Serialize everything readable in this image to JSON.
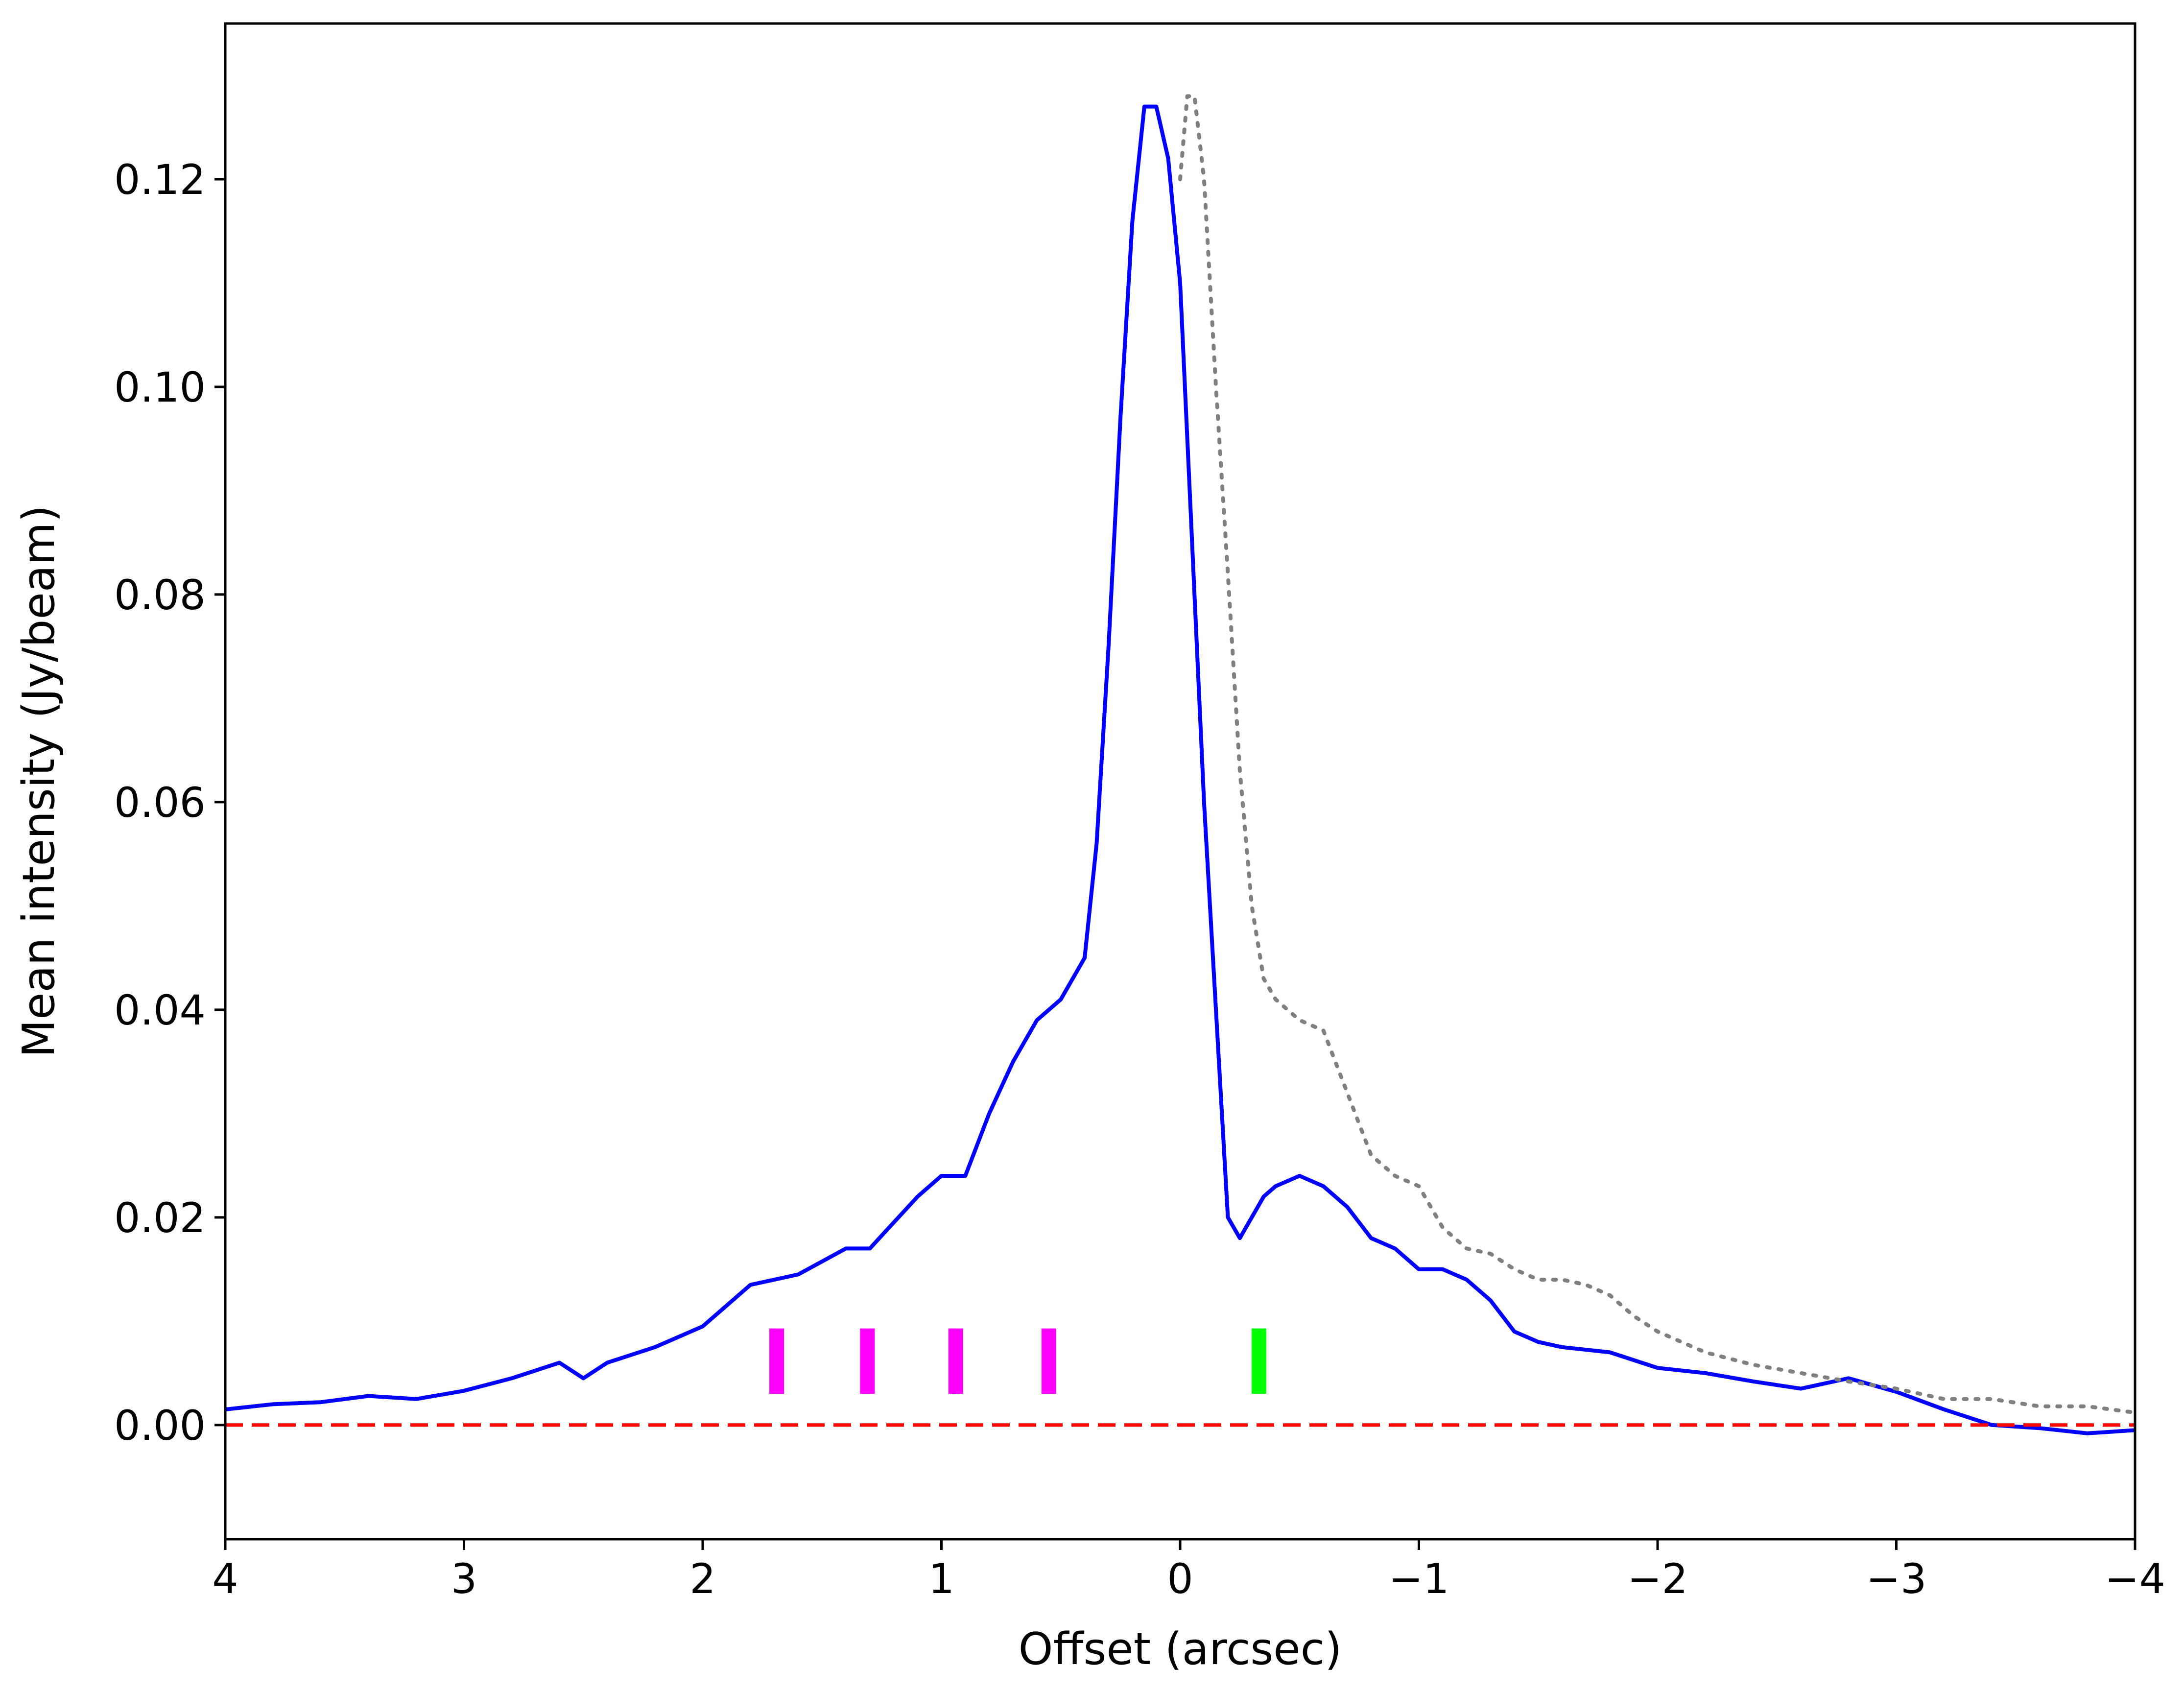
{
  "chart_data": {
    "type": "line",
    "title": "",
    "xlabel": "Offset (arcsec)",
    "ylabel": "Mean intensity (Jy/beam)",
    "xlim": [
      4,
      -4
    ],
    "ylim": [
      -0.011,
      0.135
    ],
    "x_ticks": [
      4,
      3,
      2,
      1,
      0,
      -1,
      -2,
      -3,
      -4
    ],
    "x_tick_labels": [
      "4",
      "3",
      "2",
      "1",
      "0",
      "−1",
      "−2",
      "−3",
      "−4"
    ],
    "y_ticks": [
      0.0,
      0.02,
      0.04,
      0.06,
      0.08,
      0.1,
      0.12
    ],
    "y_tick_labels": [
      "0.00",
      "0.02",
      "0.04",
      "0.06",
      "0.08",
      "0.10",
      "0.12"
    ],
    "grid": false,
    "legend": "none",
    "series": [
      {
        "style": "solid",
        "color": "#0000ff",
        "x": [
          4.0,
          3.8,
          3.6,
          3.4,
          3.2,
          3.0,
          2.8,
          2.6,
          2.5,
          2.4,
          2.2,
          2.0,
          1.8,
          1.7,
          1.6,
          1.4,
          1.3,
          1.2,
          1.1,
          1.0,
          0.9,
          0.8,
          0.7,
          0.6,
          0.5,
          0.4,
          0.35,
          0.3,
          0.25,
          0.2,
          0.15,
          0.1,
          0.05,
          0.0,
          -0.05,
          -0.1,
          -0.15,
          -0.2,
          -0.25,
          -0.3,
          -0.35,
          -0.4,
          -0.5,
          -0.6,
          -0.7,
          -0.8,
          -0.9,
          -1.0,
          -1.1,
          -1.2,
          -1.3,
          -1.4,
          -1.5,
          -1.6,
          -1.8,
          -2.0,
          -2.2,
          -2.4,
          -2.6,
          -2.8,
          -3.0,
          -3.2,
          -3.4,
          -3.6,
          -3.8,
          -4.0
        ],
        "y": [
          0.0015,
          0.002,
          0.0022,
          0.0028,
          0.0025,
          0.0033,
          0.0045,
          0.006,
          0.0045,
          0.006,
          0.0075,
          0.0095,
          0.0135,
          0.014,
          0.0145,
          0.017,
          0.017,
          0.0195,
          0.022,
          0.024,
          0.024,
          0.03,
          0.035,
          0.039,
          0.041,
          0.045,
          0.056,
          0.075,
          0.097,
          0.116,
          0.127,
          0.127,
          0.122,
          0.11,
          0.085,
          0.06,
          0.04,
          0.02,
          0.018,
          0.02,
          0.022,
          0.023,
          0.024,
          0.023,
          0.021,
          0.018,
          0.017,
          0.015,
          0.015,
          0.014,
          0.012,
          0.009,
          0.008,
          0.0075,
          0.007,
          0.0055,
          0.005,
          0.0042,
          0.0035,
          0.0045,
          0.0032,
          0.0015,
          0.0,
          -0.0003,
          -0.0008,
          -0.0005
        ]
      },
      {
        "style": "dotted",
        "color": "#808080",
        "x": [
          0.0,
          -0.03,
          -0.06,
          -0.1,
          -0.15,
          -0.2,
          -0.25,
          -0.3,
          -0.35,
          -0.4,
          -0.5,
          -0.6,
          -0.7,
          -0.8,
          -0.9,
          -1.0,
          -1.1,
          -1.2,
          -1.3,
          -1.4,
          -1.5,
          -1.6,
          -1.7,
          -1.8,
          -1.9,
          -2.0,
          -2.2,
          -2.4,
          -2.6,
          -2.8,
          -3.0,
          -3.2,
          -3.4,
          -3.6,
          -3.8,
          -4.0
        ],
        "y": [
          0.12,
          0.128,
          0.128,
          0.12,
          0.1,
          0.082,
          0.063,
          0.05,
          0.043,
          0.041,
          0.039,
          0.038,
          0.032,
          0.026,
          0.024,
          0.023,
          0.019,
          0.017,
          0.0165,
          0.015,
          0.014,
          0.014,
          0.0135,
          0.0125,
          0.0105,
          0.009,
          0.007,
          0.0058,
          0.005,
          0.0042,
          0.0035,
          0.0025,
          0.0025,
          0.0018,
          0.0018,
          0.0012
        ]
      },
      {
        "style": "dashed",
        "color": "#ff0000",
        "x": [
          4.0,
          -4.0
        ],
        "y": [
          0.0,
          0.0
        ]
      }
    ],
    "markers": [
      {
        "x": 1.69,
        "y0": 0.003,
        "y1": 0.0093,
        "color": "#ff00ff"
      },
      {
        "x": 1.31,
        "y0": 0.003,
        "y1": 0.0093,
        "color": "#ff00ff"
      },
      {
        "x": 0.94,
        "y0": 0.003,
        "y1": 0.0093,
        "color": "#ff00ff"
      },
      {
        "x": 0.55,
        "y0": 0.003,
        "y1": 0.0093,
        "color": "#ff00ff"
      },
      {
        "x": -0.33,
        "y0": 0.003,
        "y1": 0.0093,
        "color": "#00ff00"
      }
    ]
  }
}
